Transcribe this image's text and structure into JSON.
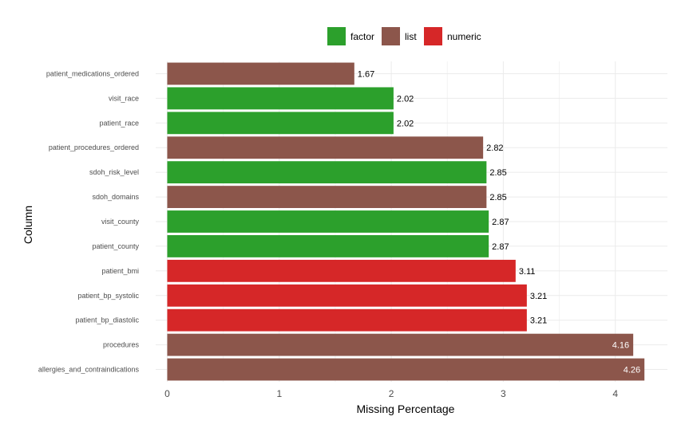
{
  "chart_data": {
    "type": "bar",
    "orientation": "horizontal",
    "xlabel": "Missing Percentage",
    "ylabel": "Column",
    "xlim": [
      0,
      4.45
    ],
    "x_ticks": [
      0,
      1,
      2,
      3,
      4
    ],
    "legend": {
      "position": "top",
      "entries": [
        {
          "label": "factor",
          "color": "#2ca02c"
        },
        {
          "label": "list",
          "color": "#8c564b"
        },
        {
          "label": "numeric",
          "color": "#d62728"
        }
      ]
    },
    "categories": [
      "patient_medications_ordered",
      "visit_race",
      "patient_race",
      "patient_procedures_ordered",
      "sdoh_risk_level",
      "sdoh_domains",
      "visit_county",
      "patient_county",
      "patient_bmi",
      "patient_bp_systolic",
      "patient_bp_diastolic",
      "procedures",
      "allergies_and_contraindications"
    ],
    "values": [
      1.67,
      2.02,
      2.02,
      2.82,
      2.85,
      2.85,
      2.87,
      2.87,
      3.11,
      3.21,
      3.21,
      4.16,
      4.26
    ],
    "value_labels": [
      "1.67",
      "2.02",
      "2.02",
      "2.82",
      "2.85",
      "2.85",
      "2.87",
      "2.87",
      "3.11",
      "3.21",
      "3.21",
      "4.16",
      "4.26"
    ],
    "types": [
      "list",
      "factor",
      "factor",
      "list",
      "factor",
      "list",
      "factor",
      "factor",
      "numeric",
      "numeric",
      "numeric",
      "list",
      "list"
    ],
    "grid": true
  }
}
